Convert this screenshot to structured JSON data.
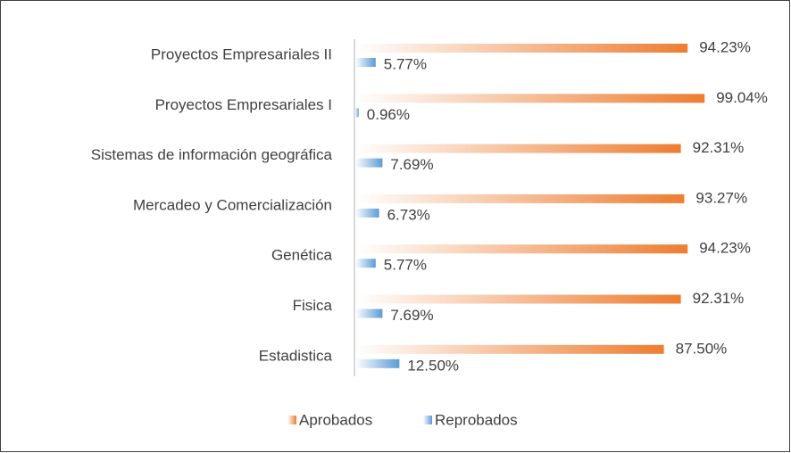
{
  "chart_data": {
    "type": "bar",
    "orientation": "horizontal",
    "categories": [
      "Proyectos Empresariales II",
      "Proyectos Empresariales I",
      "Sistemas de información geográfica",
      "Mercadeo y Comercialización",
      "Genética",
      "Fisica",
      "Estadistica"
    ],
    "series": [
      {
        "name": "Aprobados",
        "color": "#ed7d31",
        "values": [
          94.23,
          99.04,
          92.31,
          93.27,
          94.23,
          92.31,
          87.5
        ],
        "value_labels": [
          "94.23%",
          "99.04%",
          "92.31%",
          "93.27%",
          "94.23%",
          "92.31%",
          "87.50%"
        ]
      },
      {
        "name": "Reprobados",
        "color": "#5b9bd5",
        "values": [
          5.77,
          0.96,
          7.69,
          6.73,
          5.77,
          7.69,
          12.5
        ],
        "value_labels": [
          "5.77%",
          "0.96%",
          "7.69%",
          "6.73%",
          "5.77%",
          "7.69%",
          "12.50%"
        ]
      }
    ],
    "legend": "bottom"
  }
}
